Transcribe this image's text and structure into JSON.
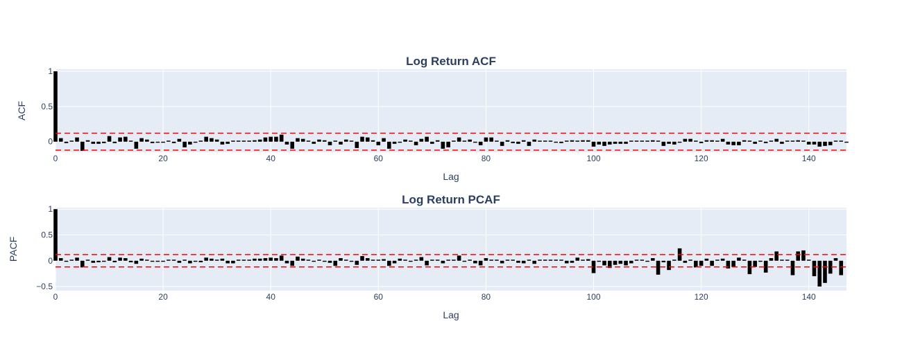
{
  "colors": {
    "plot_bg": "#e5ecf6",
    "grid": "#ffffff",
    "bar": "#000000",
    "confidence": "#ff0000",
    "text": "#2a3f5f"
  },
  "chart_data": [
    {
      "type": "bar",
      "title": "Log Return ACF",
      "xlabel": "Lag",
      "ylabel": "ACF",
      "xlim": [
        0,
        147
      ],
      "ylim": [
        -0.15,
        1.03
      ],
      "xticks": [
        0,
        20,
        40,
        60,
        80,
        100,
        120,
        140
      ],
      "yticks": [
        0,
        0.5,
        1
      ],
      "ytick_labels": [
        "0",
        "0.5",
        "1"
      ],
      "confidence_band": [
        -0.12,
        0.12
      ],
      "grid": true,
      "x_start": 0,
      "values": [
        1.0,
        0.05,
        -0.02,
        0.0,
        0.06,
        -0.13,
        0.02,
        -0.03,
        -0.03,
        -0.02,
        0.08,
        -0.02,
        0.06,
        0.07,
        0.0,
        -0.1,
        0.05,
        0.03,
        -0.02,
        -0.01,
        -0.01,
        0.0,
        -0.02,
        0.04,
        -0.08,
        -0.04,
        -0.01,
        0.01,
        0.07,
        0.05,
        0.03,
        -0.04,
        -0.03,
        0.0,
        0.01,
        0.0,
        0.01,
        0.02,
        0.03,
        0.06,
        0.07,
        0.07,
        0.1,
        -0.04,
        -0.1,
        0.05,
        0.04,
        0.0,
        -0.03,
        0.03,
        0.02,
        -0.05,
        0.01,
        -0.04,
        0.03,
        0.0,
        -0.09,
        0.07,
        0.06,
        0.02,
        -0.05,
        0.05,
        -0.1,
        -0.03,
        -0.01,
        0.03,
        0.0,
        -0.05,
        0.04,
        0.07,
        -0.03,
        0.02,
        -0.1,
        -0.08,
        0.0,
        0.06,
        0.01,
        0.03,
        -0.01,
        -0.05,
        0.06,
        0.06,
        0.01,
        -0.06,
        0.02,
        -0.02,
        -0.03,
        0.02,
        -0.06,
        0.03,
        0.0,
        0.0,
        0.0,
        -0.01,
        -0.02,
        0.01,
        0.02,
        0.01,
        0.02,
        0.02,
        -0.07,
        -0.04,
        -0.06,
        -0.04,
        -0.03,
        -0.03,
        -0.03,
        0.0,
        0.0,
        0.0,
        0.0,
        0.02,
        0.0,
        -0.06,
        -0.03,
        -0.04,
        -0.01,
        0.04,
        0.04,
        0.01,
        -0.02,
        0.02,
        0.02,
        0.0,
        0.04,
        -0.04,
        -0.05,
        -0.05,
        0.02,
        0.0,
        -0.03,
        0.01,
        -0.02,
        0.0,
        0.04,
        -0.03,
        0.01,
        0.0,
        0.02,
        0.0,
        -0.04,
        -0.04,
        -0.07,
        -0.06,
        -0.05,
        0.01,
        0.0,
        -0.01
      ]
    },
    {
      "type": "bar",
      "title": "Log Return PCAF",
      "xlabel": "Lag",
      "ylabel": "PACF",
      "xlim": [
        0,
        147
      ],
      "ylim": [
        -0.58,
        1.03
      ],
      "xticks": [
        0,
        20,
        40,
        60,
        80,
        100,
        120,
        140
      ],
      "yticks": [
        -0.5,
        0,
        0.5,
        1
      ],
      "ytick_labels": [
        "−0.5",
        "0",
        "0.5",
        "1"
      ],
      "confidence_band": [
        -0.12,
        0.12
      ],
      "grid": true,
      "x_start": 0,
      "values": [
        1.0,
        0.05,
        -0.02,
        0.0,
        0.06,
        -0.13,
        0.02,
        -0.04,
        -0.03,
        -0.01,
        0.07,
        -0.03,
        0.06,
        0.05,
        -0.03,
        -0.06,
        0.04,
        0.02,
        -0.01,
        -0.01,
        -0.01,
        0.0,
        0.02,
        -0.04,
        0.01,
        -0.05,
        -0.02,
        -0.03,
        0.06,
        0.04,
        0.02,
        0.04,
        -0.05,
        -0.05,
        0.0,
        0.0,
        0.0,
        0.04,
        0.04,
        0.05,
        0.06,
        0.05,
        0.1,
        -0.05,
        -0.1,
        0.08,
        0.04,
        0.0,
        -0.02,
        0.0,
        -0.01,
        -0.04,
        -0.1,
        0.05,
        0.0,
        -0.01,
        -0.08,
        0.09,
        0.05,
        0.0,
        0.0,
        0.03,
        -0.1,
        -0.05,
        0.04,
        0.0,
        -0.02,
        0.0,
        0.07,
        -0.09,
        0.0,
        0.0,
        -0.05,
        0.0,
        0.0,
        0.1,
        -0.02,
        0.0,
        -0.05,
        -0.09,
        0.05,
        0.02,
        0.0,
        -0.05,
        0.0,
        0.0,
        -0.04,
        -0.05,
        0.01,
        -0.06,
        0.02,
        0.0,
        0.0,
        0.0,
        0.0,
        -0.05,
        -0.04,
        0.06,
        0.0,
        0.03,
        -0.24,
        -0.02,
        -0.09,
        -0.14,
        -0.08,
        -0.06,
        -0.09,
        -0.05,
        0.0,
        0.0,
        -0.01,
        0.05,
        -0.27,
        -0.03,
        -0.18,
        0.0,
        0.24,
        -0.04,
        0.01,
        -0.13,
        -0.1,
        0.04,
        -0.1,
        0.0,
        0.04,
        -0.15,
        -0.12,
        0.06,
        0.0,
        -0.26,
        -0.12,
        -0.02,
        -0.23,
        0.05,
        0.18,
        0.0,
        0.0,
        -0.28,
        0.18,
        0.2,
        0.0,
        -0.3,
        -0.5,
        -0.43,
        -0.25,
        0.05,
        -0.28
      ]
    }
  ]
}
